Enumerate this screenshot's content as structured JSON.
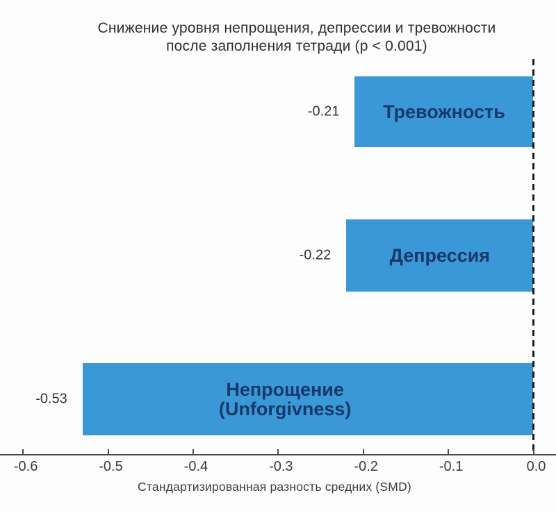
{
  "chart_data": {
    "type": "bar",
    "orientation": "horizontal",
    "title": "Снижение уровня непрощения, депрессии и тревожности после заполнения тетради (p < 0.001)",
    "title_lines": [
      "Снижение уровня непрощения, депрессии и тревожности",
      "после заполнения тетради (p < 0.001)"
    ],
    "categories": [
      "Тревожность",
      "Депрессия",
      "Непрощение (Unforgivness)"
    ],
    "category_lines": [
      [
        "Тревожность"
      ],
      [
        "Депрессия"
      ],
      [
        "Непрощение",
        "(Unforgivness)"
      ]
    ],
    "values": [
      -0.21,
      -0.22,
      -0.53
    ],
    "value_labels": [
      "-0.21",
      "-0.22",
      "-0.53"
    ],
    "xlabel": "Стандартизированная разность средних (SMD)",
    "x_ticks": [
      "-0.6",
      "-0.5",
      "-0.4",
      "-0.3",
      "-0.2",
      "-0.1",
      "0.0"
    ],
    "x_tick_values": [
      -0.6,
      -0.5,
      -0.4,
      -0.3,
      -0.2,
      -0.1,
      0.0
    ],
    "xlim": [
      -0.627,
      0.027
    ],
    "zero_line": {
      "x": 0,
      "style": "dashed"
    },
    "grid": false,
    "legend": false,
    "colors": {
      "bar_fill": "#3b98d6",
      "bar_label_text": "#17386b",
      "title_text": "#2e2e2e",
      "value_text": "#333333",
      "tick_text": "#3a3a3a",
      "axis_line": "#4a4a4a",
      "zero_line": "#1c1c1c",
      "background": "#fdfdfd"
    }
  }
}
